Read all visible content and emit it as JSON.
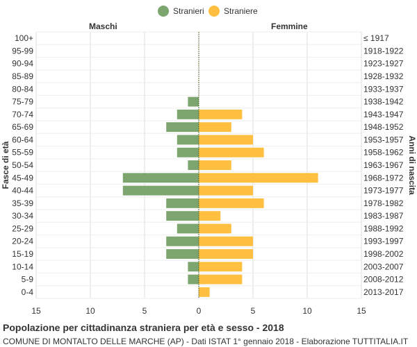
{
  "legend": {
    "stranieri": "Stranieri",
    "straniere": "Straniere"
  },
  "labels": {
    "maschi": "Maschi",
    "femmine": "Femmine"
  },
  "footer": {
    "title": "Popolazione per cittadinanza straniera per età e sesso - 2018",
    "subtitle": "COMUNE DI MONTALTO DELLE MARCHE (AP) - Dati ISTAT 1° gennaio 2018 - Elaborazione TUTTITALIA.IT"
  },
  "colors": {
    "males": "#7da56f",
    "females": "#ffbf40"
  },
  "chart_data": {
    "type": "bar",
    "orientation": "horizontal",
    "ylabel_left": "Fasce di età",
    "ylabel_right": "Anni di nascita",
    "x_ticks": [
      15,
      10,
      5,
      0,
      5,
      10,
      15
    ],
    "xlim": [
      -15,
      15
    ],
    "grid": true,
    "legend_position": "top",
    "categories": [
      "100+",
      "95-99",
      "90-94",
      "85-89",
      "80-84",
      "75-79",
      "70-74",
      "65-69",
      "60-64",
      "55-59",
      "50-54",
      "45-49",
      "40-44",
      "35-39",
      "30-34",
      "25-29",
      "20-24",
      "15-19",
      "10-14",
      "5-9",
      "0-4"
    ],
    "birth_years": [
      "≤ 1917",
      "1918-1922",
      "1923-1927",
      "1928-1932",
      "1933-1937",
      "1938-1942",
      "1943-1947",
      "1948-1952",
      "1953-1957",
      "1958-1962",
      "1963-1967",
      "1968-1972",
      "1973-1977",
      "1978-1982",
      "1983-1987",
      "1988-1992",
      "1993-1997",
      "1998-2002",
      "2003-2007",
      "2008-2012",
      "2013-2017"
    ],
    "series": [
      {
        "name": "Stranieri",
        "values": [
          0,
          0,
          0,
          0,
          0,
          1,
          2,
          3,
          2,
          2,
          1,
          7,
          7,
          3,
          3,
          2,
          3,
          3,
          1,
          1,
          0
        ]
      },
      {
        "name": "Straniere",
        "values": [
          0,
          0,
          0,
          0,
          0,
          0,
          4,
          3,
          5,
          6,
          3,
          11,
          5,
          6,
          2,
          3,
          5,
          5,
          4,
          4,
          1
        ]
      }
    ]
  }
}
